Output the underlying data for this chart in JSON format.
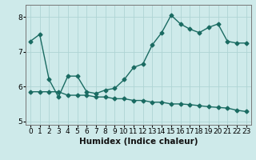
{
  "xlabel": "Humidex (Indice chaleur)",
  "background_color": "#ceeaea",
  "line_color": "#1a6b62",
  "marker": "D",
  "markersize": 2.5,
  "linewidth": 1.0,
  "series1_x": [
    0,
    1,
    2,
    3,
    4,
    5,
    6,
    7,
    8,
    9,
    10,
    11,
    12,
    13,
    14,
    15,
    16,
    17,
    18,
    19,
    20,
    21,
    22,
    23
  ],
  "series1_y": [
    7.3,
    7.5,
    6.2,
    5.7,
    6.3,
    6.3,
    5.85,
    5.8,
    5.9,
    5.95,
    6.2,
    6.55,
    6.65,
    7.2,
    7.55,
    8.05,
    7.8,
    7.65,
    7.55,
    7.7,
    7.8,
    7.3,
    7.25,
    7.25
  ],
  "series2_x": [
    0,
    1,
    2,
    3,
    4,
    5,
    6,
    7,
    8,
    9,
    10,
    11,
    12,
    13,
    14,
    15,
    16,
    17,
    18,
    19,
    20,
    21,
    22,
    23
  ],
  "series2_y": [
    5.85,
    5.85,
    5.85,
    5.85,
    5.75,
    5.75,
    5.75,
    5.7,
    5.7,
    5.65,
    5.65,
    5.6,
    5.6,
    5.55,
    5.55,
    5.5,
    5.5,
    5.48,
    5.45,
    5.42,
    5.4,
    5.38,
    5.32,
    5.28
  ],
  "xlim": [
    -0.5,
    23.5
  ],
  "ylim": [
    4.9,
    8.35
  ],
  "yticks": [
    5,
    6,
    7,
    8
  ],
  "xticks": [
    0,
    1,
    2,
    3,
    4,
    5,
    6,
    7,
    8,
    9,
    10,
    11,
    12,
    13,
    14,
    15,
    16,
    17,
    18,
    19,
    20,
    21,
    22,
    23
  ],
  "grid_color": "#aed4d4",
  "tick_fontsize": 6.5,
  "label_fontsize": 7.5
}
